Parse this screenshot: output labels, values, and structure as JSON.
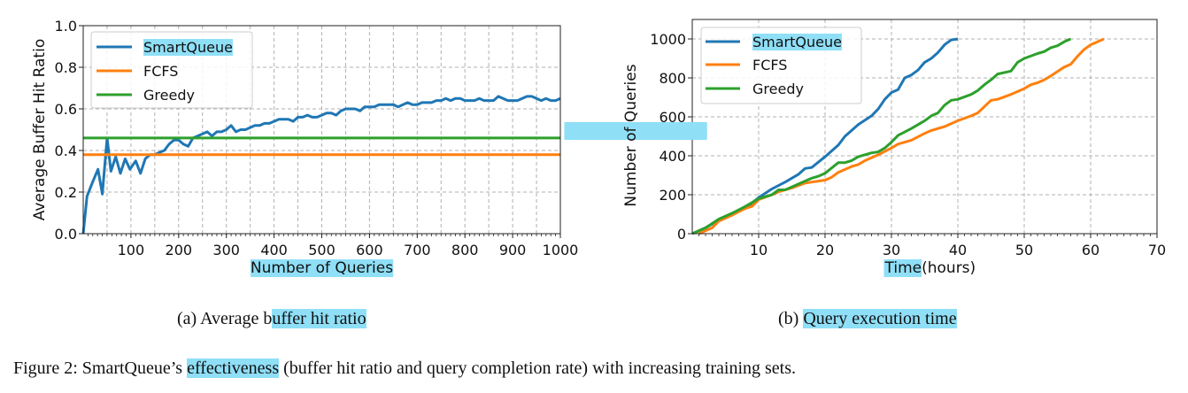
{
  "highlight_color": "#8fdff7",
  "chart_data": [
    {
      "type": "line",
      "xlabel": "Number of Queries",
      "ylabel": "Average Buffer Hit Ratio",
      "xlim": [
        0,
        1000
      ],
      "ylim": [
        0,
        1.0
      ],
      "xticks": [
        100,
        200,
        300,
        400,
        500,
        600,
        700,
        800,
        900,
        1000
      ],
      "yticks": [
        0.0,
        0.2,
        0.4,
        0.6,
        0.8,
        1.0
      ],
      "ytick_labels": [
        "0.0",
        "0.2",
        "0.4",
        "0.6",
        "0.8",
        "1.0"
      ],
      "grid": true,
      "legend_position": "top-left",
      "series": [
        {
          "name": "SmartQueue",
          "color": "#1f77b4",
          "x": [
            0,
            8,
            20,
            31,
            40,
            50,
            58,
            68,
            78,
            88,
            98,
            110,
            120,
            130,
            140,
            150,
            160,
            170,
            180,
            190,
            200,
            210,
            220,
            230,
            240,
            250,
            260,
            270,
            280,
            290,
            300,
            310,
            320,
            330,
            340,
            350,
            360,
            370,
            380,
            390,
            400,
            410,
            420,
            430,
            440,
            450,
            460,
            470,
            480,
            490,
            500,
            510,
            520,
            530,
            540,
            550,
            560,
            570,
            580,
            590,
            600,
            610,
            620,
            630,
            640,
            650,
            660,
            670,
            680,
            690,
            700,
            710,
            720,
            730,
            740,
            750,
            760,
            770,
            780,
            790,
            800,
            810,
            820,
            830,
            840,
            850,
            860,
            870,
            880,
            890,
            900,
            910,
            920,
            930,
            940,
            950,
            960,
            970,
            980,
            990,
            1000
          ],
          "y": [
            0,
            0.18,
            0.25,
            0.31,
            0.19,
            0.46,
            0.3,
            0.37,
            0.29,
            0.36,
            0.31,
            0.35,
            0.29,
            0.36,
            0.38,
            0.38,
            0.39,
            0.4,
            0.43,
            0.45,
            0.45,
            0.43,
            0.42,
            0.46,
            0.47,
            0.48,
            0.49,
            0.47,
            0.49,
            0.49,
            0.5,
            0.52,
            0.49,
            0.5,
            0.5,
            0.51,
            0.52,
            0.52,
            0.53,
            0.53,
            0.54,
            0.55,
            0.55,
            0.55,
            0.54,
            0.56,
            0.56,
            0.57,
            0.56,
            0.56,
            0.57,
            0.58,
            0.58,
            0.57,
            0.59,
            0.6,
            0.6,
            0.6,
            0.59,
            0.61,
            0.61,
            0.61,
            0.62,
            0.62,
            0.62,
            0.62,
            0.61,
            0.62,
            0.63,
            0.62,
            0.62,
            0.63,
            0.63,
            0.63,
            0.64,
            0.64,
            0.65,
            0.64,
            0.65,
            0.65,
            0.64,
            0.64,
            0.64,
            0.65,
            0.64,
            0.64,
            0.64,
            0.66,
            0.65,
            0.64,
            0.64,
            0.64,
            0.65,
            0.66,
            0.66,
            0.65,
            0.64,
            0.65,
            0.64,
            0.64,
            0.65
          ]
        },
        {
          "name": "FCFS",
          "color": "#ff7f0e",
          "x": [
            0,
            1000
          ],
          "y": [
            0.38,
            0.38
          ]
        },
        {
          "name": "Greedy",
          "color": "#2ca02c",
          "x": [
            0,
            1000
          ],
          "y": [
            0.46,
            0.46
          ]
        }
      ],
      "caption_prefix": "(a) Average b",
      "caption_highlight": "uffer hit ratio"
    },
    {
      "type": "line",
      "xlabel_highlight": "Time",
      "xlabel_rest": "(hours)",
      "ylabel": "Number of Queries",
      "xlim": [
        0,
        70
      ],
      "ylim": [
        0,
        1100
      ],
      "xticks": [
        10,
        20,
        30,
        40,
        50,
        60,
        70
      ],
      "yticks": [
        0,
        200,
        400,
        600,
        800,
        1000
      ],
      "grid": true,
      "legend_position": "top-left",
      "series": [
        {
          "name": "SmartQueue",
          "color": "#1f77b4",
          "x": [
            0,
            2,
            4,
            6,
            8,
            10,
            12,
            14,
            16,
            17,
            18,
            20,
            22,
            23,
            25,
            27,
            28,
            29,
            30,
            31,
            32,
            33,
            34,
            35,
            36,
            37,
            38,
            39,
            40
          ],
          "y": [
            0,
            30,
            70,
            100,
            130,
            185,
            230,
            265,
            305,
            335,
            340,
            395,
            455,
            500,
            560,
            605,
            640,
            690,
            725,
            740,
            800,
            815,
            840,
            880,
            900,
            930,
            970,
            995,
            1000
          ]
        },
        {
          "name": "FCFS",
          "color": "#ff7f0e",
          "x": [
            1,
            3,
            4,
            6,
            8,
            9,
            10,
            12,
            13,
            15,
            17,
            20,
            21,
            22,
            24,
            25,
            26,
            28,
            30,
            31,
            33,
            35,
            36,
            38,
            40,
            42,
            43,
            45,
            46,
            48,
            50,
            51,
            52,
            53,
            54,
            56,
            57,
            58,
            59,
            60,
            62
          ],
          "y": [
            0,
            30,
            65,
            95,
            130,
            140,
            175,
            200,
            215,
            235,
            260,
            275,
            290,
            315,
            345,
            355,
            375,
            405,
            440,
            460,
            480,
            515,
            530,
            550,
            580,
            605,
            620,
            685,
            690,
            715,
            745,
            765,
            775,
            790,
            810,
            855,
            870,
            910,
            945,
            970,
            1000
          ]
        },
        {
          "name": "Greedy",
          "color": "#2ca02c",
          "x": [
            0,
            2,
            4,
            6,
            8,
            10,
            12,
            13,
            14,
            16,
            18,
            19,
            20,
            22,
            23,
            24,
            25,
            27,
            28,
            29,
            30,
            31,
            33,
            35,
            36,
            37,
            38,
            39,
            40,
            42,
            43,
            44,
            45,
            46,
            48,
            49,
            50,
            52,
            53,
            54,
            55,
            56,
            57
          ],
          "y": [
            0,
            30,
            75,
            105,
            140,
            180,
            200,
            225,
            225,
            255,
            285,
            295,
            310,
            365,
            365,
            375,
            395,
            415,
            420,
            440,
            470,
            505,
            540,
            580,
            605,
            620,
            660,
            685,
            690,
            715,
            735,
            765,
            790,
            820,
            835,
            880,
            900,
            925,
            935,
            955,
            965,
            985,
            1000
          ]
        }
      ],
      "caption_prefix": "(b) ",
      "caption_highlight": "Query execution time"
    }
  ],
  "figure_caption": {
    "prefix": "Figure 2: SmartQueue’s ",
    "highlight": "effectiveness",
    "suffix": " (buffer hit ratio and query completion rate) with increasing training sets."
  }
}
